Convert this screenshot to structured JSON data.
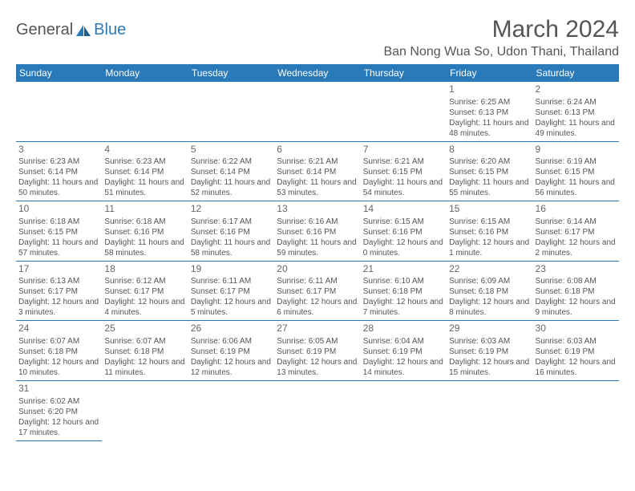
{
  "logo": {
    "text1": "General",
    "text2": "Blue"
  },
  "title": "March 2024",
  "location": "Ban Nong Wua So, Udon Thani, Thailand",
  "colors": {
    "accent": "#2a7ab9",
    "text": "#555555",
    "bg": "#ffffff"
  },
  "days_of_week": [
    "Sunday",
    "Monday",
    "Tuesday",
    "Wednesday",
    "Thursday",
    "Friday",
    "Saturday"
  ],
  "calendar": {
    "first_weekday_index": 5,
    "num_days": 31,
    "cells": [
      {
        "n": 1,
        "sr": "6:25 AM",
        "ss": "6:13 PM",
        "dl": "11 hours and 48 minutes."
      },
      {
        "n": 2,
        "sr": "6:24 AM",
        "ss": "6:13 PM",
        "dl": "11 hours and 49 minutes."
      },
      {
        "n": 3,
        "sr": "6:23 AM",
        "ss": "6:14 PM",
        "dl": "11 hours and 50 minutes."
      },
      {
        "n": 4,
        "sr": "6:23 AM",
        "ss": "6:14 PM",
        "dl": "11 hours and 51 minutes."
      },
      {
        "n": 5,
        "sr": "6:22 AM",
        "ss": "6:14 PM",
        "dl": "11 hours and 52 minutes."
      },
      {
        "n": 6,
        "sr": "6:21 AM",
        "ss": "6:14 PM",
        "dl": "11 hours and 53 minutes."
      },
      {
        "n": 7,
        "sr": "6:21 AM",
        "ss": "6:15 PM",
        "dl": "11 hours and 54 minutes."
      },
      {
        "n": 8,
        "sr": "6:20 AM",
        "ss": "6:15 PM",
        "dl": "11 hours and 55 minutes."
      },
      {
        "n": 9,
        "sr": "6:19 AM",
        "ss": "6:15 PM",
        "dl": "11 hours and 56 minutes."
      },
      {
        "n": 10,
        "sr": "6:18 AM",
        "ss": "6:15 PM",
        "dl": "11 hours and 57 minutes."
      },
      {
        "n": 11,
        "sr": "6:18 AM",
        "ss": "6:16 PM",
        "dl": "11 hours and 58 minutes."
      },
      {
        "n": 12,
        "sr": "6:17 AM",
        "ss": "6:16 PM",
        "dl": "11 hours and 58 minutes."
      },
      {
        "n": 13,
        "sr": "6:16 AM",
        "ss": "6:16 PM",
        "dl": "11 hours and 59 minutes."
      },
      {
        "n": 14,
        "sr": "6:15 AM",
        "ss": "6:16 PM",
        "dl": "12 hours and 0 minutes."
      },
      {
        "n": 15,
        "sr": "6:15 AM",
        "ss": "6:16 PM",
        "dl": "12 hours and 1 minute."
      },
      {
        "n": 16,
        "sr": "6:14 AM",
        "ss": "6:17 PM",
        "dl": "12 hours and 2 minutes."
      },
      {
        "n": 17,
        "sr": "6:13 AM",
        "ss": "6:17 PM",
        "dl": "12 hours and 3 minutes."
      },
      {
        "n": 18,
        "sr": "6:12 AM",
        "ss": "6:17 PM",
        "dl": "12 hours and 4 minutes."
      },
      {
        "n": 19,
        "sr": "6:11 AM",
        "ss": "6:17 PM",
        "dl": "12 hours and 5 minutes."
      },
      {
        "n": 20,
        "sr": "6:11 AM",
        "ss": "6:17 PM",
        "dl": "12 hours and 6 minutes."
      },
      {
        "n": 21,
        "sr": "6:10 AM",
        "ss": "6:18 PM",
        "dl": "12 hours and 7 minutes."
      },
      {
        "n": 22,
        "sr": "6:09 AM",
        "ss": "6:18 PM",
        "dl": "12 hours and 8 minutes."
      },
      {
        "n": 23,
        "sr": "6:08 AM",
        "ss": "6:18 PM",
        "dl": "12 hours and 9 minutes."
      },
      {
        "n": 24,
        "sr": "6:07 AM",
        "ss": "6:18 PM",
        "dl": "12 hours and 10 minutes."
      },
      {
        "n": 25,
        "sr": "6:07 AM",
        "ss": "6:18 PM",
        "dl": "12 hours and 11 minutes."
      },
      {
        "n": 26,
        "sr": "6:06 AM",
        "ss": "6:19 PM",
        "dl": "12 hours and 12 minutes."
      },
      {
        "n": 27,
        "sr": "6:05 AM",
        "ss": "6:19 PM",
        "dl": "12 hours and 13 minutes."
      },
      {
        "n": 28,
        "sr": "6:04 AM",
        "ss": "6:19 PM",
        "dl": "12 hours and 14 minutes."
      },
      {
        "n": 29,
        "sr": "6:03 AM",
        "ss": "6:19 PM",
        "dl": "12 hours and 15 minutes."
      },
      {
        "n": 30,
        "sr": "6:03 AM",
        "ss": "6:19 PM",
        "dl": "12 hours and 16 minutes."
      },
      {
        "n": 31,
        "sr": "6:02 AM",
        "ss": "6:20 PM",
        "dl": "12 hours and 17 minutes."
      }
    ]
  },
  "labels": {
    "sunrise": "Sunrise:",
    "sunset": "Sunset:",
    "daylight": "Daylight:"
  }
}
